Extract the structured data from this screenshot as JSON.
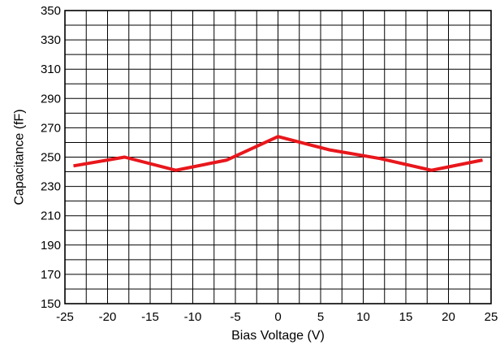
{
  "chart_data": {
    "type": "line",
    "title": "",
    "xlabel": "Bias Voltage (V)",
    "ylabel": "Capacitance (fF)",
    "xlim": [
      -25,
      25
    ],
    "ylim": [
      150,
      350
    ],
    "x_ticks": [
      -25,
      -20,
      -15,
      -10,
      -5,
      0,
      5,
      10,
      15,
      20,
      25
    ],
    "y_ticks": [
      150,
      170,
      190,
      210,
      230,
      250,
      270,
      290,
      310,
      330,
      350
    ],
    "x_tick_labels": [
      "-25",
      "-20",
      "-15",
      "-10",
      "-5",
      "0",
      "5",
      "10",
      "15",
      "20",
      "25"
    ],
    "y_tick_labels": [
      "150",
      "170",
      "190",
      "210",
      "230",
      "250",
      "270",
      "290",
      "310",
      "330",
      "350"
    ],
    "grid": true,
    "minor_grid": {
      "x_step": 2.5,
      "y_step": 10
    },
    "series": [
      {
        "color": "#e8171c",
        "x": [
          -24,
          -18,
          -12,
          -6,
          0,
          6,
          12,
          18,
          24
        ],
        "y": [
          244,
          250,
          241,
          248,
          264,
          255,
          249,
          241,
          248
        ]
      }
    ]
  }
}
